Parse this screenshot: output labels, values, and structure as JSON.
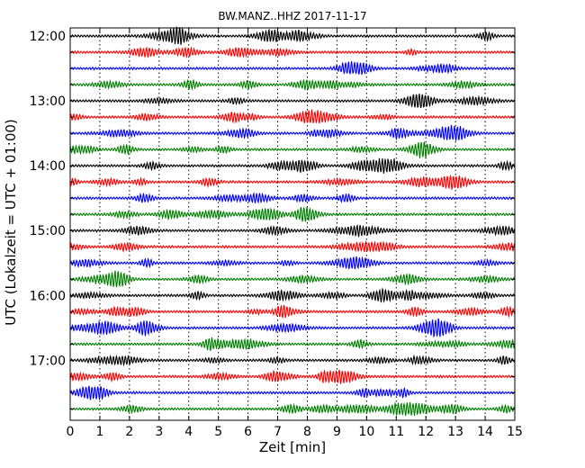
{
  "chart_data": {
    "type": "line",
    "title": "BW.MANZ..HHZ 2017-11-17",
    "xlabel": "Zeit  [min]",
    "ylabel": "UTC (Lokalzeit = UTC + 01:00)",
    "xlim": [
      0,
      15
    ],
    "x_ticks": [
      "0",
      "1",
      "2",
      "3",
      "4",
      "5",
      "6",
      "7",
      "8",
      "9",
      "10",
      "11",
      "12",
      "13",
      "14",
      "15"
    ],
    "y_tick_labels": [
      "12:00",
      "13:00",
      "14:00",
      "15:00",
      "16:00",
      "17:00"
    ],
    "grid": "vertical dotted lines at each minute",
    "trace_start": "12:00",
    "trace_interval_minutes": 15,
    "trace_count": 24,
    "trace_colors": [
      "#000000",
      "#ff0000",
      "#0000ff",
      "#008000"
    ]
  }
}
